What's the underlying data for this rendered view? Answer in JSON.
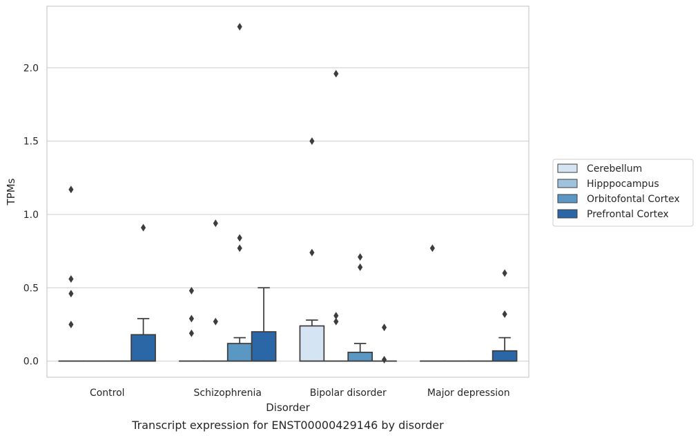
{
  "caption": "Transcript expression for ENST00000429146 by disorder",
  "chart_data": {
    "type": "box",
    "xlabel": "Disorder",
    "ylabel": "TPMs",
    "ylim": [
      -0.11,
      2.42
    ],
    "yticks": [
      "0.0",
      "0.5",
      "1.0",
      "1.5",
      "2.0"
    ],
    "grid": true,
    "legend_position": "right",
    "categories": [
      "Control",
      "Schizophrenia",
      "Bipolar disorder",
      "Major depression"
    ],
    "series": [
      {
        "name": "Cerebellum",
        "color": "#d4e4f3",
        "boxes": [
          {
            "q1": 0,
            "median": 0,
            "q3": 0,
            "whisker_low": 0,
            "whisker_high": 0,
            "outliers": [
              0.25,
              0.46,
              0.56,
              1.17
            ]
          },
          {
            "q1": 0,
            "median": 0,
            "q3": 0,
            "whisker_low": 0,
            "whisker_high": 0,
            "outliers": [
              0.19,
              0.29,
              0.48
            ]
          },
          {
            "q1": 0,
            "median": 0,
            "q3": 0.24,
            "whisker_low": 0,
            "whisker_high": 0.28,
            "outliers": [
              0.74,
              1.5
            ]
          },
          {
            "q1": 0,
            "median": 0,
            "q3": 0,
            "whisker_low": 0,
            "whisker_high": 0,
            "outliers": [
              0.77
            ]
          }
        ]
      },
      {
        "name": "Hipppocampus",
        "color": "#9fc3dd",
        "boxes": [
          {
            "q1": 0,
            "median": 0,
            "q3": 0,
            "whisker_low": 0,
            "whisker_high": 0,
            "outliers": []
          },
          {
            "q1": 0,
            "median": 0,
            "q3": 0,
            "whisker_low": 0,
            "whisker_high": 0,
            "outliers": [
              0.27,
              0.94
            ]
          },
          {
            "q1": 0,
            "median": 0,
            "q3": 0,
            "whisker_low": 0,
            "whisker_high": 0,
            "outliers": [
              0.27,
              0.31,
              1.96
            ]
          },
          {
            "q1": 0,
            "median": 0,
            "q3": 0,
            "whisker_low": 0,
            "whisker_high": 0,
            "outliers": []
          }
        ]
      },
      {
        "name": "Orbitofontal Cortex",
        "color": "#5a97c3",
        "boxes": [
          {
            "q1": 0,
            "median": 0,
            "q3": 0,
            "whisker_low": 0,
            "whisker_high": 0,
            "outliers": []
          },
          {
            "q1": 0,
            "median": 0,
            "q3": 0.12,
            "whisker_low": 0,
            "whisker_high": 0.16,
            "outliers": [
              0.77,
              0.84,
              2.28
            ]
          },
          {
            "q1": 0,
            "median": 0,
            "q3": 0.06,
            "whisker_low": 0,
            "whisker_high": 0.12,
            "outliers": [
              0.64,
              0.71
            ]
          },
          {
            "q1": 0,
            "median": 0,
            "q3": 0,
            "whisker_low": 0,
            "whisker_high": 0,
            "outliers": []
          }
        ]
      },
      {
        "name": "Prefrontal Cortex",
        "color": "#2b67a6",
        "boxes": [
          {
            "q1": 0,
            "median": 0,
            "q3": 0.18,
            "whisker_low": 0,
            "whisker_high": 0.29,
            "outliers": [
              0.91
            ]
          },
          {
            "q1": 0,
            "median": 0,
            "q3": 0.2,
            "whisker_low": 0,
            "whisker_high": 0.5,
            "outliers": []
          },
          {
            "q1": 0,
            "median": 0,
            "q3": 0,
            "whisker_low": 0,
            "whisker_high": 0,
            "outliers": [
              0.01,
              0.23
            ]
          },
          {
            "q1": 0,
            "median": 0,
            "q3": 0.07,
            "whisker_low": 0,
            "whisker_high": 0.16,
            "outliers": [
              0.32,
              0.6
            ]
          }
        ]
      }
    ]
  }
}
